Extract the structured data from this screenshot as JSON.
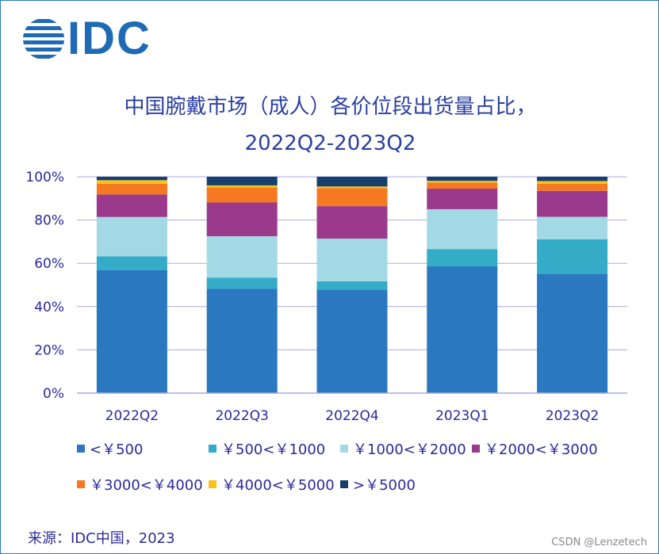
{
  "logo": {
    "text": "IDC",
    "color": "#1f6ab4"
  },
  "chart_data": {
    "type": "bar",
    "stacked": true,
    "title_line1": "中国腕戴市场（成人）各价位段出货量占比，",
    "title_line2": "2022Q2-2023Q2",
    "categories": [
      "2022Q2",
      "2022Q3",
      "2022Q4",
      "2023Q1",
      "2023Q2"
    ],
    "ylim": [
      0,
      100
    ],
    "yticks": [
      {
        "value": 0,
        "label": "0%"
      },
      {
        "value": 20,
        "label": "20%"
      },
      {
        "value": 40,
        "label": "40%"
      },
      {
        "value": 60,
        "label": "60%"
      },
      {
        "value": 80,
        "label": "80%"
      },
      {
        "value": 100,
        "label": "100%"
      }
    ],
    "grid": true,
    "legend_position": "bottom",
    "series": [
      {
        "name": "<￥500",
        "color": "#2a78c0",
        "values": [
          56.9,
          48.3,
          47.9,
          58.6,
          55.2
        ]
      },
      {
        "name": "￥500<￥1000",
        "color": "#34acc8",
        "values": [
          6.3,
          5.1,
          3.8,
          7.9,
          15.9
        ]
      },
      {
        "name": "￥1000<￥2000",
        "color": "#a3d9e5",
        "values": [
          18.2,
          19.1,
          19.7,
          18.5,
          10.4
        ]
      },
      {
        "name": "￥2000<￥3000",
        "color": "#9b3a8c",
        "values": [
          10.4,
          15.6,
          15.0,
          9.5,
          12.0
        ]
      },
      {
        "name": "￥3000<￥4000",
        "color": "#f47920",
        "values": [
          5.0,
          7.0,
          8.3,
          2.8,
          3.2
        ]
      },
      {
        "name": "￥4000<￥5000",
        "color": "#f9c21b",
        "values": [
          1.6,
          0.9,
          0.8,
          0.8,
          1.3
        ]
      },
      {
        "name": ">￥5000",
        "color": "#163f6b",
        "values": [
          1.6,
          4.0,
          4.5,
          1.9,
          2.0
        ]
      }
    ]
  },
  "source": "来源：IDC中国，2023",
  "watermark": "CSDN @Lenzetech",
  "colors": {
    "title": "#2a3fa0",
    "text": "#2a2a9c",
    "gridline": "#a9a9e0",
    "border": "#2a7cc0"
  }
}
